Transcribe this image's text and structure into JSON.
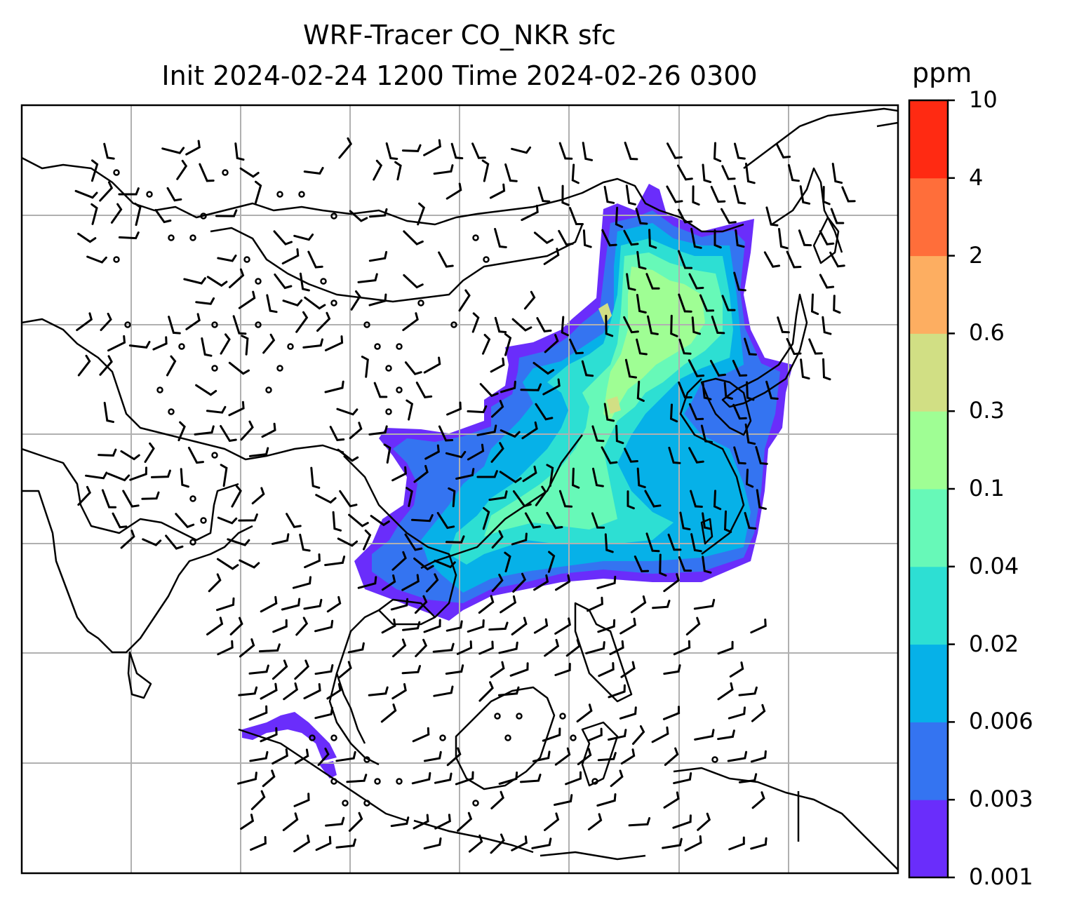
{
  "title": {
    "line1": "WRF-Tracer CO_NKR sfc",
    "line2": "Init 2024-02-24 1200 Time 2024-02-26 0300"
  },
  "colorbar": {
    "unit": "ppm",
    "levels": [
      "0.001",
      "0.003",
      "0.006",
      "0.02",
      "0.04",
      "0.1",
      "0.3",
      "0.6",
      "2",
      "4",
      "10"
    ],
    "colors": [
      "#6a2dfb",
      "#3474f1",
      "#06b1e8",
      "#2ddfd3",
      "#67f9b8",
      "#9ffe94",
      "#d1df84",
      "#fdae61",
      "#ff6e3a",
      "#ff2a12"
    ]
  },
  "map": {
    "type": "filled-contour with wind barbs",
    "region": "East Asia / Southeast Asia",
    "gridlines": true
  }
}
